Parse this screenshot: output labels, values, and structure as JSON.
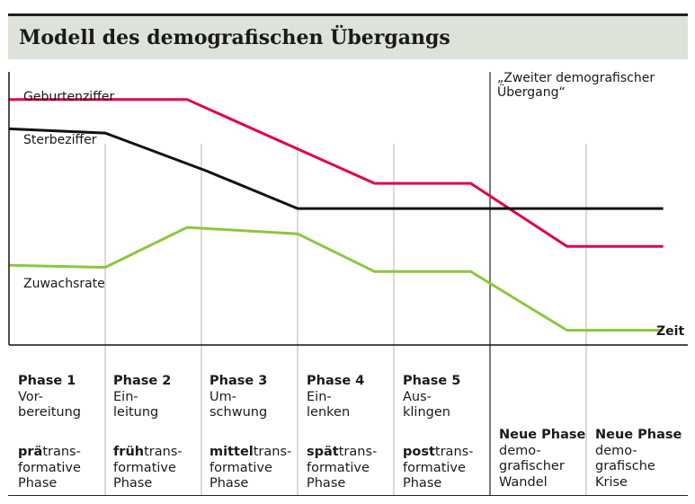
{
  "title": "Modell des demografischen Übergangs",
  "line_labels": {
    "birth": "Geburtenziffer",
    "death": "Sterbeziffer",
    "growth": "Zuwachsrate",
    "second_transition": "„Zweiter demografischer\nÜbergang“",
    "x_axis": "Zeit"
  },
  "colors": {
    "birth_line": "#e0004d",
    "death_line": "#111111",
    "growth_line": "#8cc63f",
    "header_background": "#dde3d9"
  },
  "phases": [
    {
      "title": "Phase 1",
      "name": [
        "Vor-",
        "bereitung"
      ],
      "prefix": "prä",
      "rest": "trans-",
      "line2": "formative",
      "line3": "Phase"
    },
    {
      "title": "Phase 2",
      "name": [
        "Ein-",
        "leitung"
      ],
      "prefix": "früh",
      "rest": "trans-",
      "line2": "formative",
      "line3": "Phase"
    },
    {
      "title": "Phase 3",
      "name": [
        "Um-",
        "schwung"
      ],
      "prefix": "mittel",
      "rest": "trans-",
      "line2": "formative",
      "line3": "Phase"
    },
    {
      "title": "Phase 4",
      "name": [
        "Ein-",
        "lenken"
      ],
      "prefix": "spät",
      "rest": "trans-",
      "line2": "formative",
      "line3": "Phase"
    },
    {
      "title": "Phase 5",
      "name": [
        "Aus-",
        "klingen"
      ],
      "prefix": "post",
      "rest": "trans-",
      "line2": "formative",
      "line3": "Phase"
    }
  ],
  "new_phases": [
    {
      "title": "Neue Phase",
      "lines": [
        "demo-",
        "grafischer",
        "Wandel"
      ]
    },
    {
      "title": "Neue Phase",
      "lines": [
        "demo-",
        "grafische",
        "Krise"
      ]
    }
  ],
  "chart_data": {
    "type": "line",
    "xlabel": "Zeit",
    "ylabel": "",
    "x": [
      0,
      1,
      2,
      3,
      4,
      5,
      6,
      7
    ],
    "x_note": "phase boundaries (unitless time)",
    "series": [
      {
        "name": "Geburtenziffer",
        "values": [
          [
            0,
            92
          ],
          [
            1,
            92
          ],
          [
            1.85,
            92
          ],
          [
            3.8,
            52
          ],
          [
            4.8,
            52
          ],
          [
            5.8,
            22
          ],
          [
            6.8,
            22
          ]
        ]
      },
      {
        "name": "Sterbeziffer",
        "values": [
          [
            0,
            78
          ],
          [
            1,
            76
          ],
          [
            2.05,
            58
          ],
          [
            3,
            40
          ],
          [
            6.8,
            40
          ]
        ]
      },
      {
        "name": "Zuwachsrate",
        "values": [
          [
            0,
            13
          ],
          [
            1,
            12
          ],
          [
            1.85,
            31
          ],
          [
            3,
            28
          ],
          [
            3.8,
            10
          ],
          [
            4.8,
            10
          ],
          [
            5.8,
            -18
          ],
          [
            6.8,
            -18
          ]
        ]
      }
    ],
    "ylim": [
      -25,
      100
    ],
    "grid": false,
    "legend": "none"
  }
}
